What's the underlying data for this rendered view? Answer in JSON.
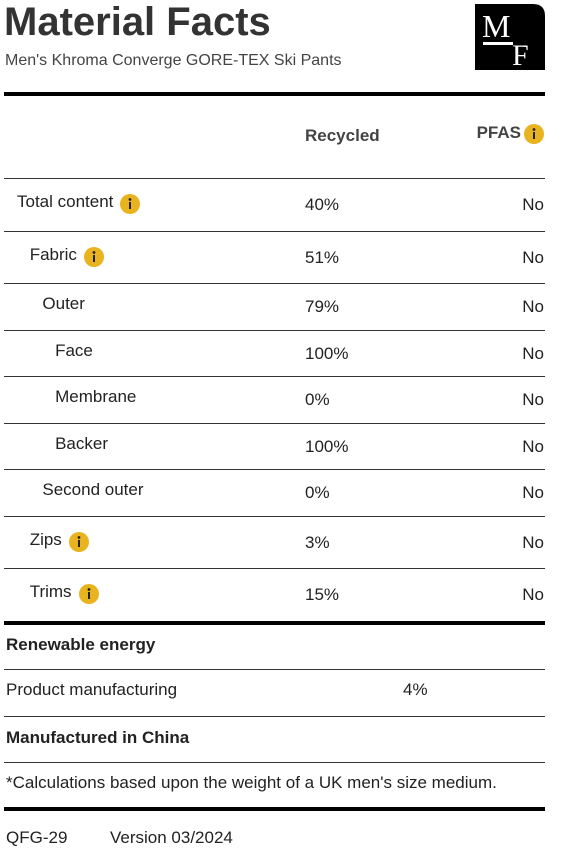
{
  "header": {
    "title": "Material Facts",
    "subtitle": "Men's Khroma Converge GORE-TEX Ski Pants",
    "logo": [
      "M",
      "F"
    ]
  },
  "table": {
    "columns": [
      {
        "label": "Recycled"
      },
      {
        "label": "PFAS",
        "info": true
      }
    ],
    "rows": [
      {
        "label": "Total content",
        "level": 0,
        "info": true,
        "recycled": "40%",
        "pfas": "No"
      },
      {
        "label": "Fabric",
        "level": 1,
        "info": true,
        "recycled": "51%",
        "pfas": "No"
      },
      {
        "label": "Outer",
        "level": 2,
        "recycled": "79%",
        "pfas": "No"
      },
      {
        "label": "Face",
        "level": 3,
        "recycled": "100%",
        "pfas": "No"
      },
      {
        "label": "Membrane",
        "level": 3,
        "recycled": "0%",
        "pfas": "No"
      },
      {
        "label": "Backer",
        "level": 3,
        "recycled": "100%",
        "pfas": "No"
      },
      {
        "label": "Second outer",
        "level": 2,
        "recycled": "0%",
        "pfas": "No"
      },
      {
        "label": "Zips",
        "level": 1,
        "info": true,
        "recycled": "3%",
        "pfas": "No"
      },
      {
        "label": "Trims",
        "level": 1,
        "info": true,
        "recycled": "15%",
        "pfas": "No"
      }
    ]
  },
  "energy": {
    "title": "Renewable energy",
    "rows": [
      {
        "label": "Product manufacturing",
        "value": "4%"
      }
    ]
  },
  "origin": "Manufactured in China",
  "footnote": "*Calculations based upon the weight of a UK men's size medium.",
  "footer": {
    "code": "QFG-29",
    "version": "Version 03/2024"
  }
}
